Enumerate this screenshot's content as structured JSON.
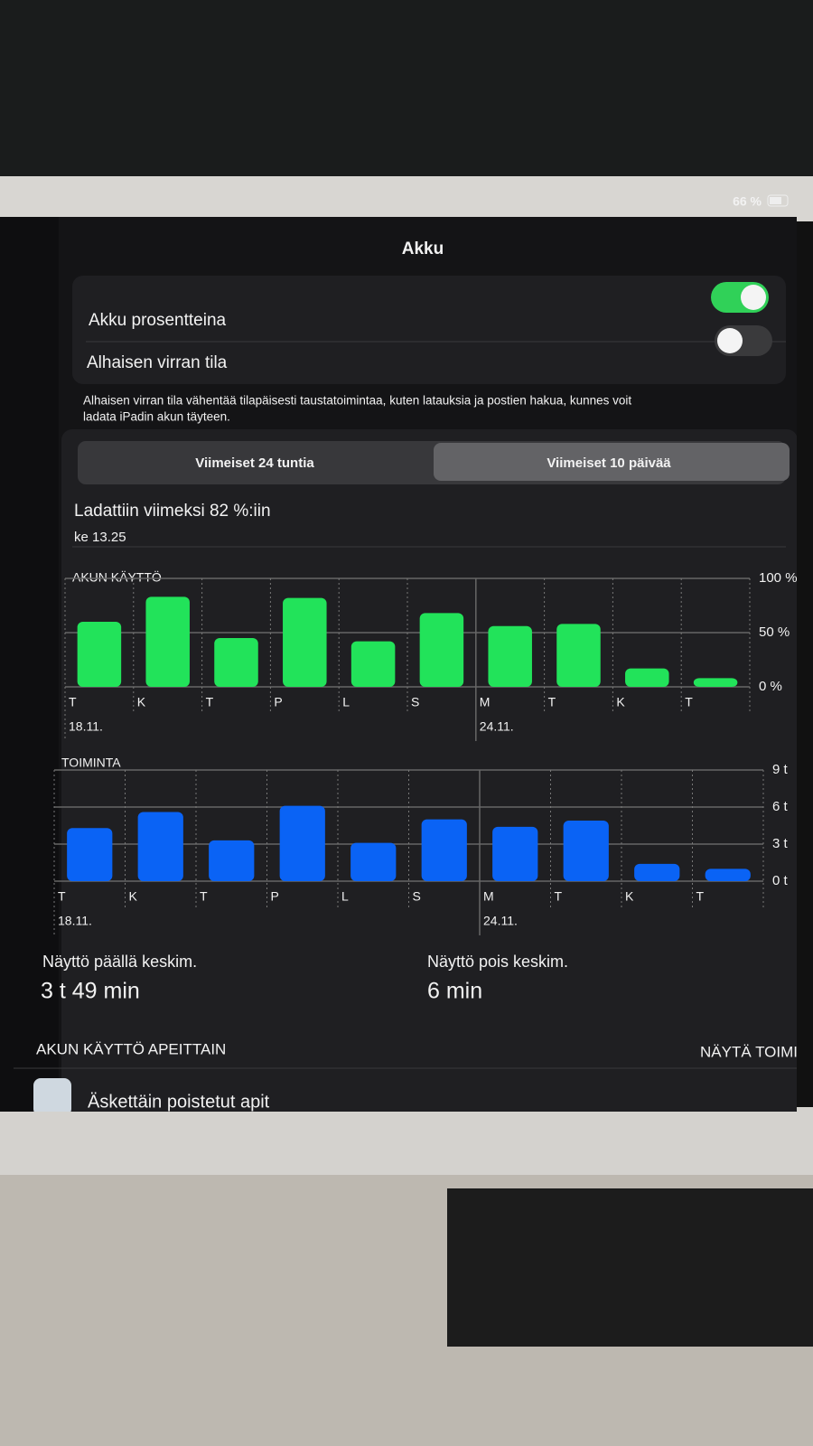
{
  "status": {
    "battery": "66 %"
  },
  "header": {
    "title": "Akku"
  },
  "settings": [
    {
      "label": "Akku prosentteina",
      "on": true
    },
    {
      "label": "Alhaisen virran tila",
      "on": false
    }
  ],
  "description": [
    "Alhaisen virran tila vähentää tilapäisesti taustatoimintaa, kuten latauksia ja postien hakua, kunnes voit",
    "ladata iPadin akun täyteen."
  ],
  "segments": {
    "options": [
      "Viimeiset 24 tuntia",
      "Viimeiset 10 päivää"
    ],
    "selected": 1
  },
  "last_charge": {
    "title": "Ladattiin viimeksi 82 %:iin",
    "time": "ke 13.25"
  },
  "battery_chart": {
    "type": "bar",
    "title": "AKUN KÄYTTÖ",
    "color": "#22e35a",
    "categories": [
      "T",
      "K",
      "T",
      "P",
      "L",
      "S",
      "M",
      "T",
      "K",
      "T"
    ],
    "dates": [
      "18.11.",
      null,
      null,
      null,
      null,
      null,
      "24.11.",
      null,
      null,
      null
    ],
    "values": [
      60,
      83,
      45,
      82,
      42,
      68,
      56,
      58,
      17,
      8
    ],
    "ylim": [
      0,
      100
    ],
    "yticks": [
      {
        "value": 0,
        "label": "0 %"
      },
      {
        "value": 50,
        "label": "50 %"
      },
      {
        "value": 100,
        "label": "100 %"
      }
    ]
  },
  "activity_chart": {
    "type": "bar",
    "title": "TOIMINTA",
    "color": "#0a63f5",
    "categories": [
      "T",
      "K",
      "T",
      "P",
      "L",
      "S",
      "M",
      "T",
      "K",
      "T"
    ],
    "dates": [
      "18.11.",
      null,
      null,
      null,
      null,
      null,
      "24.11.",
      null,
      null,
      null
    ],
    "values": [
      4.3,
      5.6,
      3.3,
      6.1,
      3.1,
      5.0,
      4.4,
      4.9,
      1.4,
      1.0
    ],
    "ylim": [
      0,
      9
    ],
    "yticks": [
      {
        "value": 0,
        "label": "0 t"
      },
      {
        "value": 3,
        "label": "3 t"
      },
      {
        "value": 6,
        "label": "6 t"
      },
      {
        "value": 9,
        "label": "9 t"
      }
    ]
  },
  "averages": [
    {
      "label": "Näyttö päällä keskim.",
      "value": "3 t 49 min"
    },
    {
      "label": "Näyttö pois keskim.",
      "value": "6 min"
    }
  ],
  "apps_section": {
    "title": "AKUN KÄYTTÖ APEITTAIN",
    "action": "NÄYTÄ TOIMINTA",
    "first_app": "Äskettäin poistetut apit"
  }
}
